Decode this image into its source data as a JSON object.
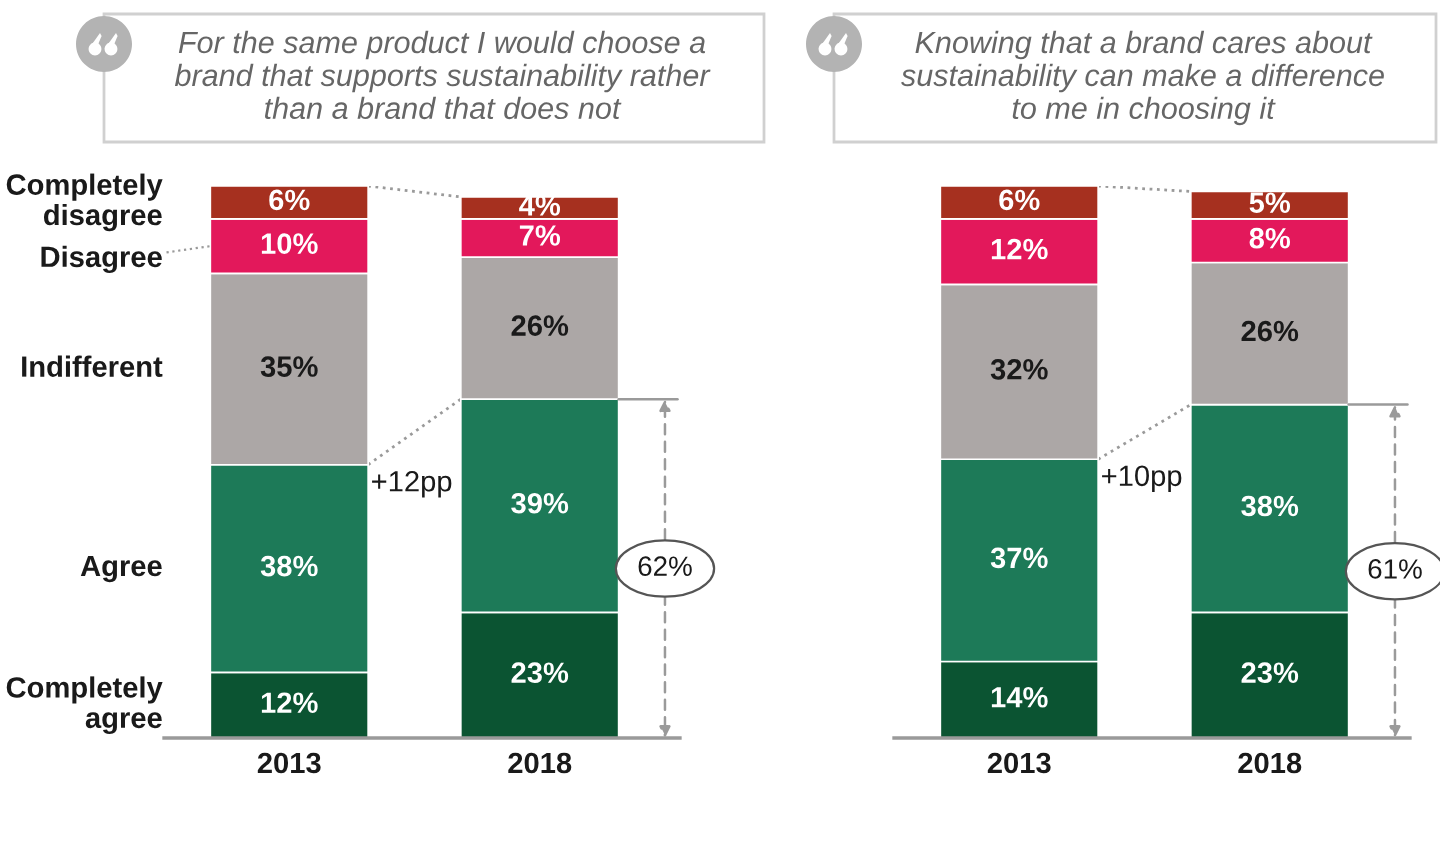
{
  "chart_data": [
    {
      "type": "bar",
      "stacked": true,
      "tick_labels": "x",
      "title": "For the same product I would choose a\nbrand that supports sustainability rather\nthan a brand that does not",
      "categories": [
        "2013",
        "2018"
      ],
      "series": [
        {
          "name": "Completely agree",
          "color": "#0b5432",
          "values": [
            12,
            23
          ],
          "value_labels": [
            "12%",
            "23%"
          ]
        },
        {
          "name": "Agree",
          "color": "#1d7a58",
          "values": [
            38,
            39
          ],
          "value_labels": [
            "38%",
            "39%"
          ]
        },
        {
          "name": "Indifferent",
          "color": "#aca7a6",
          "values": [
            35,
            26
          ],
          "value_labels": [
            "35%",
            "26%"
          ]
        },
        {
          "name": "Disagree",
          "color": "#e3185b",
          "values": [
            10,
            7
          ],
          "value_labels": [
            "10%",
            "7%"
          ]
        },
        {
          "name": "Completely disagree",
          "color": "#a6301f",
          "values": [
            6,
            4
          ],
          "value_labels": [
            "6%",
            "4%"
          ]
        }
      ],
      "annotations": [
        {
          "text": "+12pp",
          "x": "2013",
          "y": 50
        },
        "62%"
      ]
    },
    {
      "type": "bar",
      "stacked": true,
      "tick_labels": "x",
      "title": "Knowing that a brand cares about\nsustainability can make a difference\nto me in choosing it",
      "categories": [
        "2013",
        "2018"
      ],
      "series": [
        {
          "color": "#0b5432",
          "values": [
            14,
            23
          ],
          "value_labels": [
            "14%",
            "23%"
          ]
        },
        {
          "color": "#1d7a58",
          "values": [
            37,
            38
          ],
          "value_labels": [
            "37%",
            "38%"
          ]
        },
        {
          "color": "#aca7a6",
          "values": [
            32,
            26
          ],
          "value_labels": [
            "32%",
            "26%"
          ]
        },
        {
          "color": "#e3185b",
          "values": [
            12,
            8
          ],
          "value_labels": [
            "12%",
            "8%"
          ]
        },
        {
          "color": "#a6301f",
          "values": [
            6,
            5
          ],
          "value_labels": [
            "6%",
            "5%"
          ]
        }
      ],
      "annotations": [
        {
          "text": "+10pp",
          "x": "2013",
          "y": 51
        },
        "61%"
      ]
    }
  ]
}
